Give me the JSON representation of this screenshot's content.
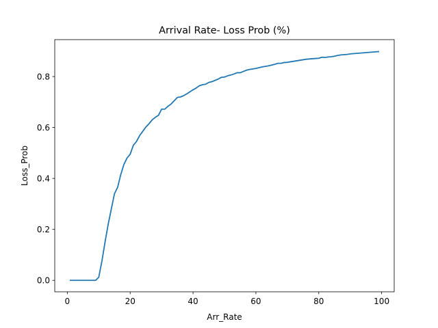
{
  "chart_data": {
    "type": "line",
    "title": "Arrival Rate- Loss Prob (%)",
    "xlabel": "Arr_Rate",
    "ylabel": "Loss_Prob",
    "xlim": [
      -4,
      104
    ],
    "ylim": [
      -0.045,
      0.945
    ],
    "grid": false,
    "line_color": "#1f77b4",
    "x_ticks": [
      {
        "value": 0,
        "label": "0"
      },
      {
        "value": 20,
        "label": "20"
      },
      {
        "value": 40,
        "label": "40"
      },
      {
        "value": 60,
        "label": "60"
      },
      {
        "value": 80,
        "label": "80"
      },
      {
        "value": 100,
        "label": "100"
      }
    ],
    "y_ticks": [
      {
        "value": 0.0,
        "label": "0.0"
      },
      {
        "value": 0.2,
        "label": "0.2"
      },
      {
        "value": 0.4,
        "label": "0.4"
      },
      {
        "value": 0.6,
        "label": "0.6"
      },
      {
        "value": 0.8,
        "label": "0.8"
      }
    ],
    "series": [
      {
        "x": [
          1,
          2,
          3,
          4,
          5,
          6,
          7,
          8,
          9,
          10,
          11,
          12,
          13,
          14,
          15,
          16,
          17,
          18,
          19,
          20,
          21,
          22,
          23,
          24,
          25,
          26,
          27,
          28,
          29,
          30,
          31,
          32,
          33,
          34,
          35,
          36,
          37,
          38,
          39,
          40,
          41,
          42,
          43,
          44,
          45,
          46,
          47,
          48,
          49,
          50,
          51,
          52,
          53,
          54,
          55,
          56,
          57,
          58,
          59,
          60,
          61,
          62,
          63,
          64,
          65,
          66,
          67,
          68,
          69,
          70,
          71,
          72,
          73,
          74,
          75,
          76,
          77,
          78,
          79,
          80,
          81,
          82,
          83,
          84,
          85,
          86,
          87,
          88,
          89,
          90,
          91,
          92,
          93,
          94,
          95,
          96,
          97,
          98,
          99
        ],
        "values": [
          0.0,
          0.0,
          0.0,
          0.0,
          0.0,
          0.0,
          0.0,
          0.0,
          0.0,
          0.012,
          0.075,
          0.15,
          0.22,
          0.28,
          0.34,
          0.365,
          0.415,
          0.455,
          0.48,
          0.495,
          0.53,
          0.545,
          0.568,
          0.585,
          0.602,
          0.615,
          0.63,
          0.64,
          0.648,
          0.672,
          0.672,
          0.683,
          0.692,
          0.705,
          0.718,
          0.72,
          0.725,
          0.732,
          0.74,
          0.748,
          0.755,
          0.764,
          0.768,
          0.77,
          0.777,
          0.78,
          0.785,
          0.79,
          0.797,
          0.798,
          0.803,
          0.806,
          0.81,
          0.815,
          0.815,
          0.82,
          0.825,
          0.828,
          0.83,
          0.832,
          0.835,
          0.838,
          0.84,
          0.842,
          0.845,
          0.848,
          0.852,
          0.852,
          0.855,
          0.856,
          0.858,
          0.86,
          0.862,
          0.864,
          0.866,
          0.868,
          0.869,
          0.87,
          0.871,
          0.872,
          0.876,
          0.875,
          0.877,
          0.878,
          0.88,
          0.883,
          0.885,
          0.886,
          0.887,
          0.889,
          0.89,
          0.891,
          0.892,
          0.893,
          0.894,
          0.895,
          0.896,
          0.897,
          0.898
        ]
      }
    ]
  }
}
